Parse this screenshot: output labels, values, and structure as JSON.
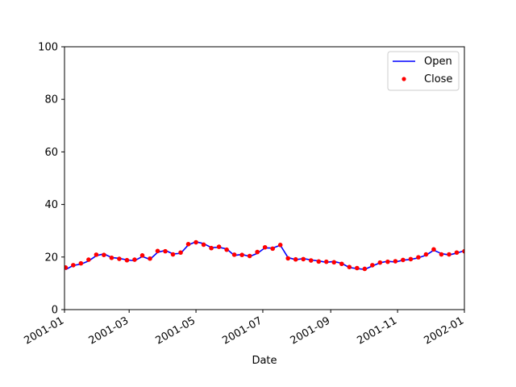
{
  "chart_data": {
    "type": "line",
    "title": "",
    "xlabel": "Date",
    "ylabel": "",
    "ylim": [
      0,
      100
    ],
    "xlim": [
      "2001-01-01",
      "2002-01-01"
    ],
    "yticks": [
      0,
      20,
      40,
      60,
      80,
      100
    ],
    "xticks": [
      "2001-01",
      "2001-03",
      "2001-05",
      "2001-07",
      "2001-09",
      "2001-11",
      "2002-01"
    ],
    "grid": false,
    "legend_position": "top-right",
    "series": [
      {
        "name": "Open",
        "style": "line",
        "color": "#0000ff",
        "x": [
          "2001-01-02",
          "2001-01-09",
          "2001-01-16",
          "2001-01-23",
          "2001-01-30",
          "2001-02-06",
          "2001-02-13",
          "2001-02-20",
          "2001-02-27",
          "2001-03-06",
          "2001-03-13",
          "2001-03-20",
          "2001-03-27",
          "2001-04-03",
          "2001-04-10",
          "2001-04-17",
          "2001-04-24",
          "2001-05-01",
          "2001-05-08",
          "2001-05-15",
          "2001-05-22",
          "2001-05-29",
          "2001-06-05",
          "2001-06-12",
          "2001-06-19",
          "2001-06-26",
          "2001-07-03",
          "2001-07-10",
          "2001-07-17",
          "2001-07-24",
          "2001-07-31",
          "2001-08-07",
          "2001-08-14",
          "2001-08-21",
          "2001-08-28",
          "2001-09-04",
          "2001-09-11",
          "2001-09-18",
          "2001-09-25",
          "2001-10-02",
          "2001-10-09",
          "2001-10-16",
          "2001-10-23",
          "2001-10-30",
          "2001-11-06",
          "2001-11-13",
          "2001-11-20",
          "2001-11-27",
          "2001-12-04",
          "2001-12-11",
          "2001-12-18",
          "2001-12-25",
          "2002-01-01"
        ],
        "values": [
          15.2,
          16.8,
          17.3,
          18.5,
          20.5,
          21.2,
          19.8,
          19.5,
          18.9,
          18.6,
          20.2,
          19.1,
          21.8,
          22.5,
          21.2,
          21.4,
          24.6,
          25.8,
          25.1,
          23.6,
          23.7,
          23.1,
          20.6,
          21.0,
          20.2,
          21.4,
          23.5,
          23.4,
          24.5,
          19.8,
          19.0,
          19.4,
          18.9,
          18.5,
          18.0,
          18.3,
          17.6,
          16.0,
          15.6,
          15.3,
          16.6,
          17.8,
          18.4,
          18.1,
          18.8,
          19.1,
          19.7,
          20.7,
          22.6,
          21.3,
          20.8,
          21.5,
          22.4
        ]
      },
      {
        "name": "Close",
        "style": "points",
        "color": "#ff0000",
        "x": [
          "2001-01-02",
          "2001-01-09",
          "2001-01-16",
          "2001-01-23",
          "2001-01-30",
          "2001-02-06",
          "2001-02-13",
          "2001-02-20",
          "2001-02-27",
          "2001-03-06",
          "2001-03-13",
          "2001-03-20",
          "2001-03-27",
          "2001-04-03",
          "2001-04-10",
          "2001-04-17",
          "2001-04-24",
          "2001-05-01",
          "2001-05-08",
          "2001-05-15",
          "2001-05-22",
          "2001-05-29",
          "2001-06-05",
          "2001-06-12",
          "2001-06-19",
          "2001-06-26",
          "2001-07-03",
          "2001-07-10",
          "2001-07-17",
          "2001-07-24",
          "2001-07-31",
          "2001-08-07",
          "2001-08-14",
          "2001-08-21",
          "2001-08-28",
          "2001-09-04",
          "2001-09-11",
          "2001-09-18",
          "2001-09-25",
          "2001-10-02",
          "2001-10-09",
          "2001-10-16",
          "2001-10-23",
          "2001-10-30",
          "2001-11-06",
          "2001-11-13",
          "2001-11-20",
          "2001-11-27",
          "2001-12-04",
          "2001-12-11",
          "2001-12-18",
          "2001-12-25",
          "2002-01-01"
        ],
        "values": [
          16.0,
          16.9,
          17.6,
          19.0,
          20.9,
          20.8,
          19.7,
          19.3,
          18.8,
          19.0,
          20.6,
          19.4,
          22.3,
          22.2,
          21.0,
          21.7,
          24.9,
          25.6,
          24.7,
          23.4,
          23.9,
          22.8,
          20.9,
          20.8,
          20.4,
          21.9,
          23.7,
          23.2,
          24.6,
          19.5,
          19.1,
          19.2,
          18.7,
          18.3,
          18.2,
          18.0,
          17.4,
          16.2,
          15.8,
          15.5,
          16.9,
          17.9,
          18.2,
          18.4,
          18.9,
          19.2,
          19.9,
          21.0,
          22.9,
          21.0,
          21.0,
          21.7,
          22.2
        ]
      }
    ]
  }
}
